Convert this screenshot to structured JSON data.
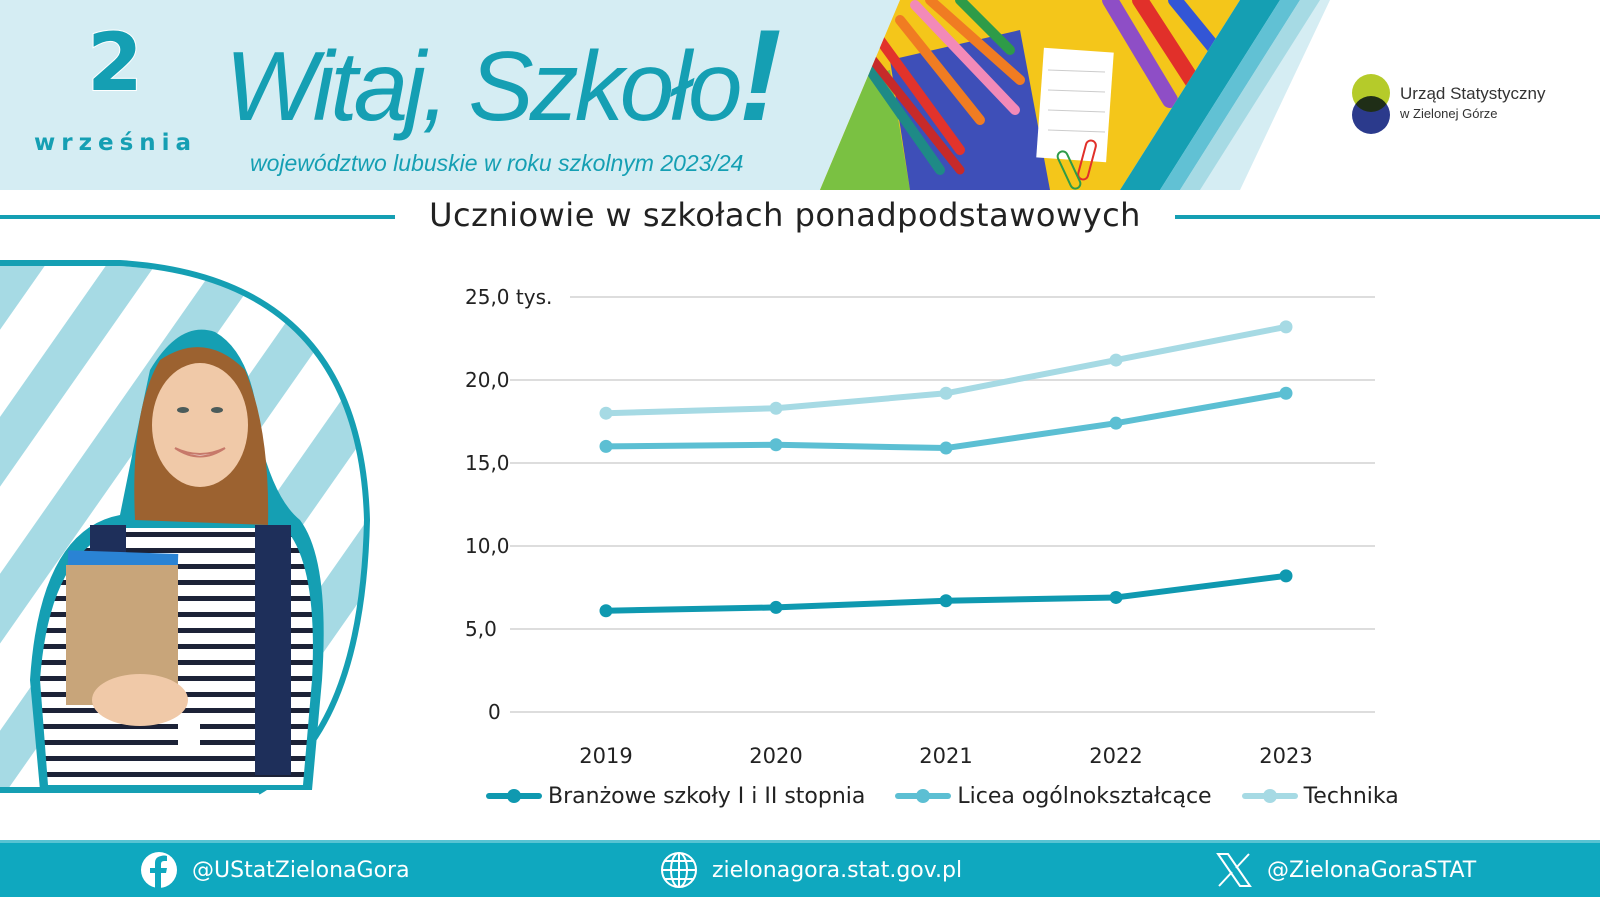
{
  "header": {
    "date_day": "2",
    "date_month": "września",
    "title_main": "Witaj, Szkoło",
    "title_excl": "!",
    "subtitle": "województwo lubuskie w roku szkolnym 2023/24",
    "logo": {
      "line1": "Urząd Statystyczny",
      "line2": "w Zielonej Górze"
    }
  },
  "section": {
    "title": "Uczniowie w szkołach ponadpodstawowych"
  },
  "colors": {
    "brand_teal": "#159fb3",
    "header_bg": "#d5edf3",
    "footer_bg": "#0fa8bf",
    "series_branzowe": "#0f99b0",
    "series_licea": "#5cbfd3",
    "series_technika": "#a6dae4"
  },
  "chart_data": {
    "type": "line",
    "title": "Uczniowie w szkołach ponadpodstawowych",
    "xlabel": "",
    "ylabel": "tys.",
    "categories": [
      "2019",
      "2020",
      "2021",
      "2022",
      "2023"
    ],
    "yticks": [
      "0",
      "5,0",
      "10,0",
      "15,0",
      "20,0",
      "25,0 tys."
    ],
    "ylim": [
      0,
      25
    ],
    "grid": true,
    "legend_position": "bottom",
    "series": [
      {
        "name": "Branżowe szkoły I i II stopnia",
        "color": "#0f99b0",
        "values": [
          6.1,
          6.3,
          6.7,
          6.9,
          8.2
        ]
      },
      {
        "name": "Licea ogólnokształcące",
        "color": "#5cbfd3",
        "values": [
          16.0,
          16.1,
          15.9,
          17.4,
          19.2
        ]
      },
      {
        "name": "Technika",
        "color": "#a6dae4",
        "values": [
          18.0,
          18.3,
          19.2,
          21.2,
          23.2
        ]
      }
    ]
  },
  "footer": {
    "facebook_icon": "facebook-icon",
    "facebook": "@UStatZielonaGora",
    "web_icon": "globe-icon",
    "website": "zielonagora.stat.gov.pl",
    "x_icon": "x-logo-icon",
    "twitter": "@ZielonaGoraSTAT"
  }
}
